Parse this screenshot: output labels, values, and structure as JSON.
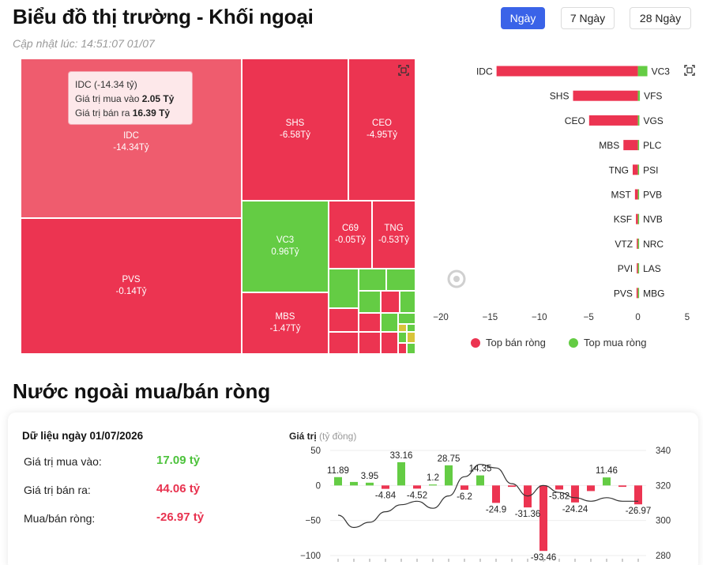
{
  "header": {
    "title": "Biểu đồ thị trường - Khối ngoại",
    "updated": "Cập nhật lúc: 14:51:07 01/07",
    "periods": [
      {
        "label": "Ngày",
        "active": true
      },
      {
        "label": "7 Ngày",
        "active": false
      },
      {
        "label": "28 Ngày",
        "active": false
      }
    ]
  },
  "treemap": {
    "tiles": [
      {
        "code": "IDC",
        "value": "-14.34Tỷ"
      },
      {
        "code": "SHS",
        "value": "-6.58Tỷ"
      },
      {
        "code": "CEO",
        "value": "-4.95Tỷ"
      },
      {
        "code": "VC3",
        "value": "0.96Tỷ"
      },
      {
        "code": "C69",
        "value": "-0.05Tỷ"
      },
      {
        "code": "TNG",
        "value": "-0.53Tỷ"
      },
      {
        "code": "PVS",
        "value": "-0.14Tỷ"
      },
      {
        "code": "MBS",
        "value": "-1.47Tỷ"
      }
    ],
    "tooltip": {
      "title": "IDC (-14.34 tỷ)",
      "buy_label": "Giá trị mua vào",
      "buy_value": "2.05 Tỷ",
      "sell_label": "Giá trị bán ra",
      "sell_value": "16.39 Tỷ"
    },
    "colors": {
      "sell": "#ec3451",
      "sell_light": "#ef5c6e",
      "buy": "#64cc44"
    }
  },
  "bar_chart": {
    "sell": [
      {
        "code": "IDC",
        "value": -14.34
      },
      {
        "code": "SHS",
        "value": -6.58
      },
      {
        "code": "CEO",
        "value": -4.95
      },
      {
        "code": "MBS",
        "value": -1.47
      },
      {
        "code": "TNG",
        "value": -0.53
      },
      {
        "code": "MST",
        "value": -0.3
      },
      {
        "code": "KSF",
        "value": -0.2
      },
      {
        "code": "VTZ",
        "value": -0.1
      },
      {
        "code": "PVI",
        "value": -0.08
      },
      {
        "code": "PVS",
        "value": -0.14
      }
    ],
    "buy": [
      {
        "code": "VC3",
        "value": 0.96
      },
      {
        "code": "VFS",
        "value": 0.2
      },
      {
        "code": "VGS",
        "value": 0.15
      },
      {
        "code": "PLC",
        "value": 0.1
      },
      {
        "code": "PSI",
        "value": 0.08
      },
      {
        "code": "PVB",
        "value": 0.06
      },
      {
        "code": "NVB",
        "value": 0.05
      },
      {
        "code": "NRC",
        "value": 0.04
      },
      {
        "code": "LAS",
        "value": 0.03
      },
      {
        "code": "MBG",
        "value": 0.02
      }
    ],
    "xlim": [
      -20,
      5
    ],
    "ticks": [
      "−20",
      "−15",
      "−10",
      "−5",
      "0",
      "5"
    ],
    "legend_sell": "Top bán ròng",
    "legend_buy": "Top mua ròng"
  },
  "summary": {
    "title": "Nước ngoài mua/bán ròng",
    "date_label": "Dữ liệu ngày 01/07/2026",
    "buy_label": "Giá trị mua vào:",
    "buy_value": "17.09 tỷ",
    "sell_label": "Giá trị bán ra:",
    "sell_value": "44.06 tỷ",
    "net_label": "Mua/bán ròng:",
    "net_value": "-26.97 tỷ"
  },
  "chart_data": {
    "type": "bar",
    "title": "",
    "ylabel": "Giá trị",
    "ylabel_unit": "(tỷ đồng)",
    "ylim": [
      -100,
      50
    ],
    "y_ticks": [
      "50",
      "0",
      "−50",
      "−100"
    ],
    "y2lim": [
      280,
      340
    ],
    "y2_ticks": [
      "340",
      "320",
      "300",
      "280"
    ],
    "series": [
      {
        "values": [
          11.89,
          5.0,
          3.95,
          -4.84,
          33.16,
          -4.52,
          1.2,
          28.75,
          -6.2,
          14.35,
          -24.9,
          -2.0,
          -31.36,
          -93.46,
          -5.82,
          -24.24,
          -8.0,
          11.46,
          -2.0,
          -26.97
        ]
      },
      {
        "values": [
          303,
          296,
          299,
          305,
          309,
          311,
          307,
          314,
          325,
          332,
          330,
          321,
          314,
          320,
          316,
          313,
          311,
          313,
          311,
          311
        ]
      }
    ],
    "labels_shown": [
      "11.89",
      "3.95",
      "-4.84",
      "33.16",
      "-4.52",
      "1.2",
      "28.75",
      "-6.2",
      "14.35",
      "-24.9",
      "-31.36",
      "-93.46",
      "-5.82",
      "-24.24",
      "11.46",
      "-26.97"
    ],
    "colors": {
      "positive": "#64cc44",
      "negative": "#ec3451",
      "line": "#333333"
    }
  }
}
